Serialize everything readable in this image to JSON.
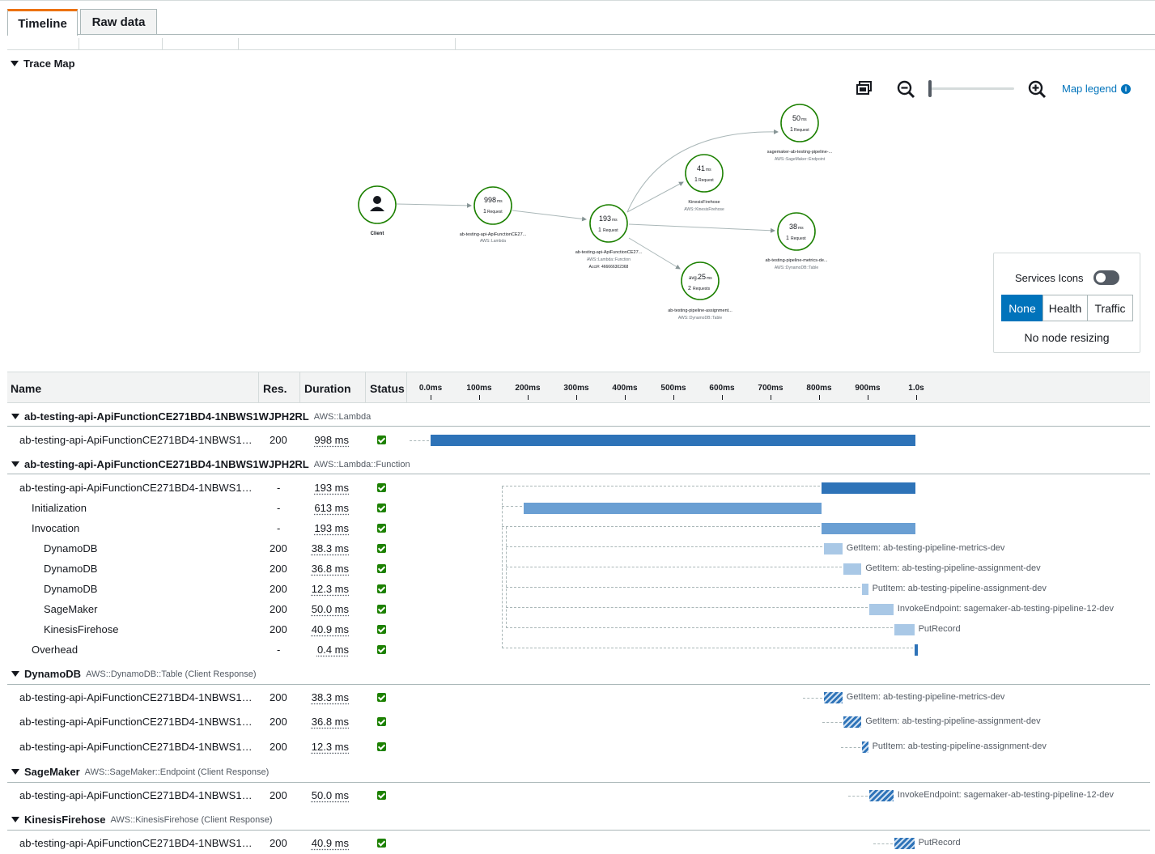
{
  "tabs": [
    {
      "label": "Timeline"
    },
    {
      "label": "Raw data"
    }
  ],
  "trace_map": {
    "title": "Trace Map",
    "controls": {
      "map_legend_label": "Map legend",
      "info_glyph": "i"
    },
    "nodes": {
      "client": {
        "label": "Client"
      },
      "lambda": {
        "duration": "998",
        "unit": "ms",
        "requests": "1",
        "req_label": "Request",
        "name": "ab-testing-api-ApiFunctionCE27...",
        "type": "AWS::Lambda"
      },
      "function": {
        "duration": "193",
        "unit": "ms",
        "requests": "1",
        "req_label": "Request",
        "name": "ab-testing-api-ApiFunctionCE27...",
        "type": "AWS::Lambda::Function",
        "account": "Acct#: 466666302368"
      },
      "firehose": {
        "duration": "41",
        "unit": "ms",
        "requests": "1",
        "req_label": "Request",
        "name": "KinesisFirehose",
        "type": "AWS::KinesisFirehose"
      },
      "sagemaker": {
        "duration": "50",
        "unit": "ms",
        "requests": "1",
        "req_label": "Request",
        "name": "sagemaker-ab-testing-pipeline-...",
        "type": "AWS::SageMaker::Endpoint"
      },
      "metrics": {
        "duration": "38",
        "unit": "ms",
        "requests": "1",
        "req_label": "Request",
        "name": "ab-testing-pipeline-metrics-de...",
        "type": "AWS::DynamoDB::Table"
      },
      "assignment": {
        "prefix": "avg.",
        "duration": "25",
        "unit": "ms",
        "requests": "2",
        "req_label": "Requests",
        "name": "ab-testing-pipeline-assignment...",
        "type": "AWS::DynamoDB::Table"
      }
    }
  },
  "legend_panel": {
    "services_icons_label": "Services Icons",
    "services_icons_on": false,
    "segments": [
      {
        "label": "None",
        "selected": true
      },
      {
        "label": "Health",
        "selected": false
      },
      {
        "label": "Traffic",
        "selected": false
      }
    ],
    "note": "No node resizing"
  },
  "table": {
    "headers": {
      "name": "Name",
      "res": "Res.",
      "duration": "Duration",
      "status": "Status"
    },
    "axis_ticks": [
      "0.0ms",
      "100ms",
      "200ms",
      "300ms",
      "400ms",
      "500ms",
      "600ms",
      "700ms",
      "800ms",
      "900ms",
      "1.0s"
    ],
    "groups": [
      {
        "name": "ab-testing-api-ApiFunctionCE271BD4-1NBWS1WJPH2RL",
        "type": "AWS::Lambda"
      },
      {
        "name": "ab-testing-api-ApiFunctionCE271BD4-1NBWS1WJPH2RL",
        "type": "AWS::Lambda::Function"
      },
      {
        "name": "DynamoDB",
        "type": "AWS::DynamoDB::Table (Client Response)"
      },
      {
        "name": "SageMaker",
        "type": "AWS::SageMaker::Endpoint (Client Response)"
      },
      {
        "name": "KinesisFirehose",
        "type": "AWS::KinesisFirehose (Client Response)"
      }
    ],
    "rows": [
      {
        "name": "ab-testing-api-ApiFunctionCE271BD4-1NBWS1WJPH2RL",
        "res": "200",
        "duration": "998 ms",
        "label": "",
        "start_ms": 0,
        "end_ms": 998
      },
      {
        "name": "ab-testing-api-ApiFunctionCE271BD4-1NBWS1WJPH2RL",
        "res": "-",
        "duration": "193 ms",
        "label": "",
        "start_ms": 805,
        "end_ms": 998
      },
      {
        "name": "Initialization",
        "res": "-",
        "duration": "613 ms",
        "label": "",
        "start_ms": 192,
        "end_ms": 805
      },
      {
        "name": "Invocation",
        "res": "-",
        "duration": "193 ms",
        "label": "",
        "start_ms": 805,
        "end_ms": 998
      },
      {
        "name": "DynamoDB",
        "res": "200",
        "duration": "38.3 ms",
        "label": "GetItem: ab-testing-pipeline-metrics-dev",
        "start_ms": 810,
        "end_ms": 848
      },
      {
        "name": "DynamoDB",
        "res": "200",
        "duration": "36.8 ms",
        "label": "GetItem: ab-testing-pipeline-assignment-dev",
        "start_ms": 850,
        "end_ms": 887
      },
      {
        "name": "DynamoDB",
        "res": "200",
        "duration": "12.3 ms",
        "label": "PutItem: ab-testing-pipeline-assignment-dev",
        "start_ms": 889,
        "end_ms": 901
      },
      {
        "name": "SageMaker",
        "res": "200",
        "duration": "50.0 ms",
        "label": "InvokeEndpoint: sagemaker-ab-testing-pipeline-12-dev",
        "start_ms": 903,
        "end_ms": 953
      },
      {
        "name": "KinesisFirehose",
        "res": "200",
        "duration": "40.9 ms",
        "label": "PutRecord",
        "start_ms": 955,
        "end_ms": 996
      },
      {
        "name": "Overhead",
        "res": "-",
        "duration": "0.4 ms",
        "label": "",
        "start_ms": 997,
        "end_ms": 998
      },
      {
        "name": "ab-testing-api-ApiFunctionCE271BD4-1NBWS1WJPH2RL",
        "res": "200",
        "duration": "38.3 ms",
        "label": "GetItem: ab-testing-pipeline-metrics-dev",
        "start_ms": 810,
        "end_ms": 848
      },
      {
        "name": "ab-testing-api-ApiFunctionCE271BD4-1NBWS1WJPH2RL",
        "res": "200",
        "duration": "36.8 ms",
        "label": "GetItem: ab-testing-pipeline-assignment-dev",
        "start_ms": 850,
        "end_ms": 887
      },
      {
        "name": "ab-testing-api-ApiFunctionCE271BD4-1NBWS1WJPH2RL",
        "res": "200",
        "duration": "12.3 ms",
        "label": "PutItem: ab-testing-pipeline-assignment-dev",
        "start_ms": 889,
        "end_ms": 901
      },
      {
        "name": "ab-testing-api-ApiFunctionCE271BD4-1NBWS1WJPH2RL",
        "res": "200",
        "duration": "50.0 ms",
        "label": "InvokeEndpoint: sagemaker-ab-testing-pipeline-12-dev",
        "start_ms": 903,
        "end_ms": 953
      },
      {
        "name": "ab-testing-api-ApiFunctionCE271BD4-1NBWS1WJPH2RL",
        "res": "200",
        "duration": "40.9 ms",
        "label": "PutRecord",
        "start_ms": 955,
        "end_ms": 996
      }
    ]
  },
  "colors": {
    "accent": "#0073bb",
    "node_ring": "#1d8102",
    "tab_highlight": "#ec7211",
    "bar_dark": "#2e73b8",
    "status_ok": "#1d8102"
  }
}
